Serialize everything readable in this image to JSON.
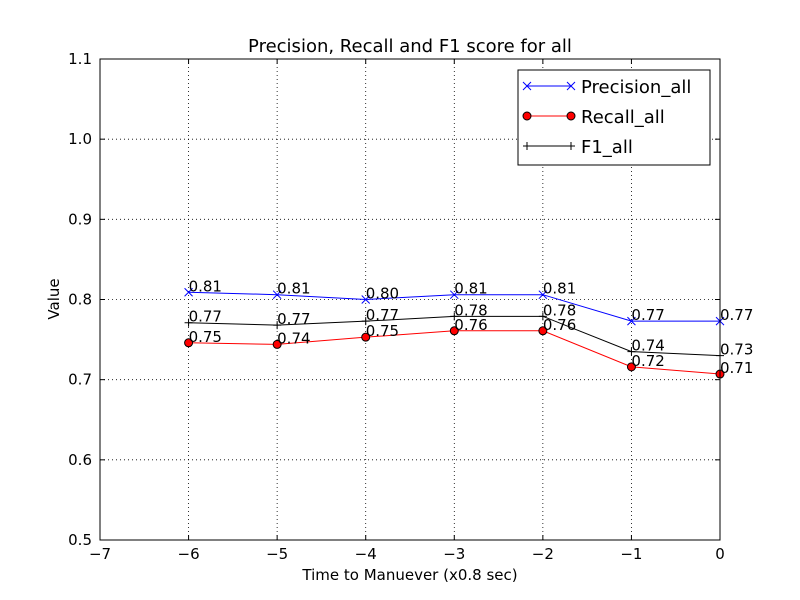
{
  "chart_data": {
    "type": "line",
    "title": "Precision, Recall and F1 score for all",
    "xlabel": "Time to Manuever (x0.8 sec)",
    "ylabel": "Value",
    "xlim": [
      -7,
      0
    ],
    "ylim": [
      0.5,
      1.1
    ],
    "xticks": [
      -7,
      -6,
      -5,
      -4,
      -3,
      -2,
      -1,
      0
    ],
    "xtick_labels": [
      "−7",
      "−6",
      "−5",
      "−4",
      "−3",
      "−2",
      "−1",
      "0"
    ],
    "yticks": [
      0.5,
      0.6,
      0.7,
      0.8,
      0.9,
      1.0,
      1.1
    ],
    "ytick_labels": [
      "0.5",
      "0.6",
      "0.7",
      "0.8",
      "0.9",
      "1.0",
      "1.1"
    ],
    "grid": true,
    "legend_position": "top-right",
    "x": [
      -6,
      -5,
      -4,
      -3,
      -2,
      -1,
      0
    ],
    "series": [
      {
        "name": "Precision_all",
        "color": "#0000ff",
        "marker": "x",
        "values": [
          0.809,
          0.806,
          0.8,
          0.806,
          0.806,
          0.773,
          0.773
        ],
        "labels": [
          "0.81",
          "0.81",
          "0.80",
          "0.81",
          "0.81",
          "0.77",
          "0.77"
        ]
      },
      {
        "name": "Recall_all",
        "color": "#ff0000",
        "marker": "circle",
        "values": [
          0.746,
          0.744,
          0.753,
          0.761,
          0.761,
          0.716,
          0.707
        ],
        "labels": [
          "0.75",
          "0.74",
          "0.75",
          "0.76",
          "0.76",
          "0.72",
          "0.71"
        ]
      },
      {
        "name": "F1_all",
        "color": "#000000",
        "marker": "plus",
        "values": [
          0.771,
          0.768,
          0.773,
          0.779,
          0.779,
          0.735,
          0.73
        ],
        "labels": [
          "0.77",
          "0.77",
          "0.77",
          "0.78",
          "0.78",
          "0.74",
          "0.73"
        ]
      }
    ]
  }
}
